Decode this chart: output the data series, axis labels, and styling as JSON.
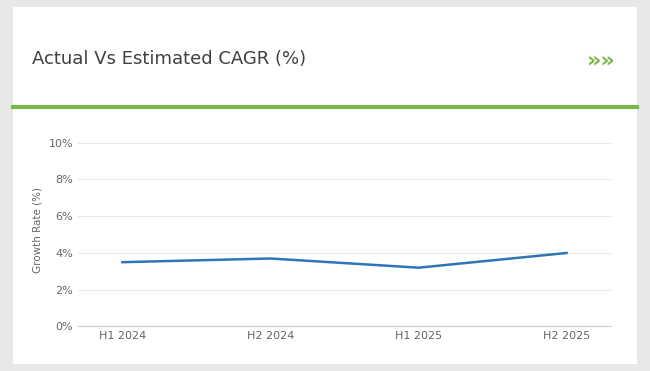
{
  "title": "Actual Vs Estimated CAGR (%)",
  "x_labels": [
    "H1 2024",
    "H2 2024",
    "H1 2025",
    "H2 2025"
  ],
  "y_values": [
    3.5,
    3.7,
    3.2,
    4.0
  ],
  "line_color": "#2e75b6",
  "line_width": 1.8,
  "ylabel": "Growth Rate (%)",
  "y_ticks": [
    0,
    2,
    4,
    6,
    8,
    10
  ],
  "y_tick_labels": [
    "0%",
    "2%",
    "4%",
    "6%",
    "8%",
    "10%"
  ],
  "ylim": [
    0,
    10.5
  ],
  "background_color": "#ffffff",
  "outer_background": "#e8e8e8",
  "title_fontsize": 13,
  "green_line_color": "#7ab648",
  "green_arrow_color": "#7ab648",
  "title_color": "#404040"
}
